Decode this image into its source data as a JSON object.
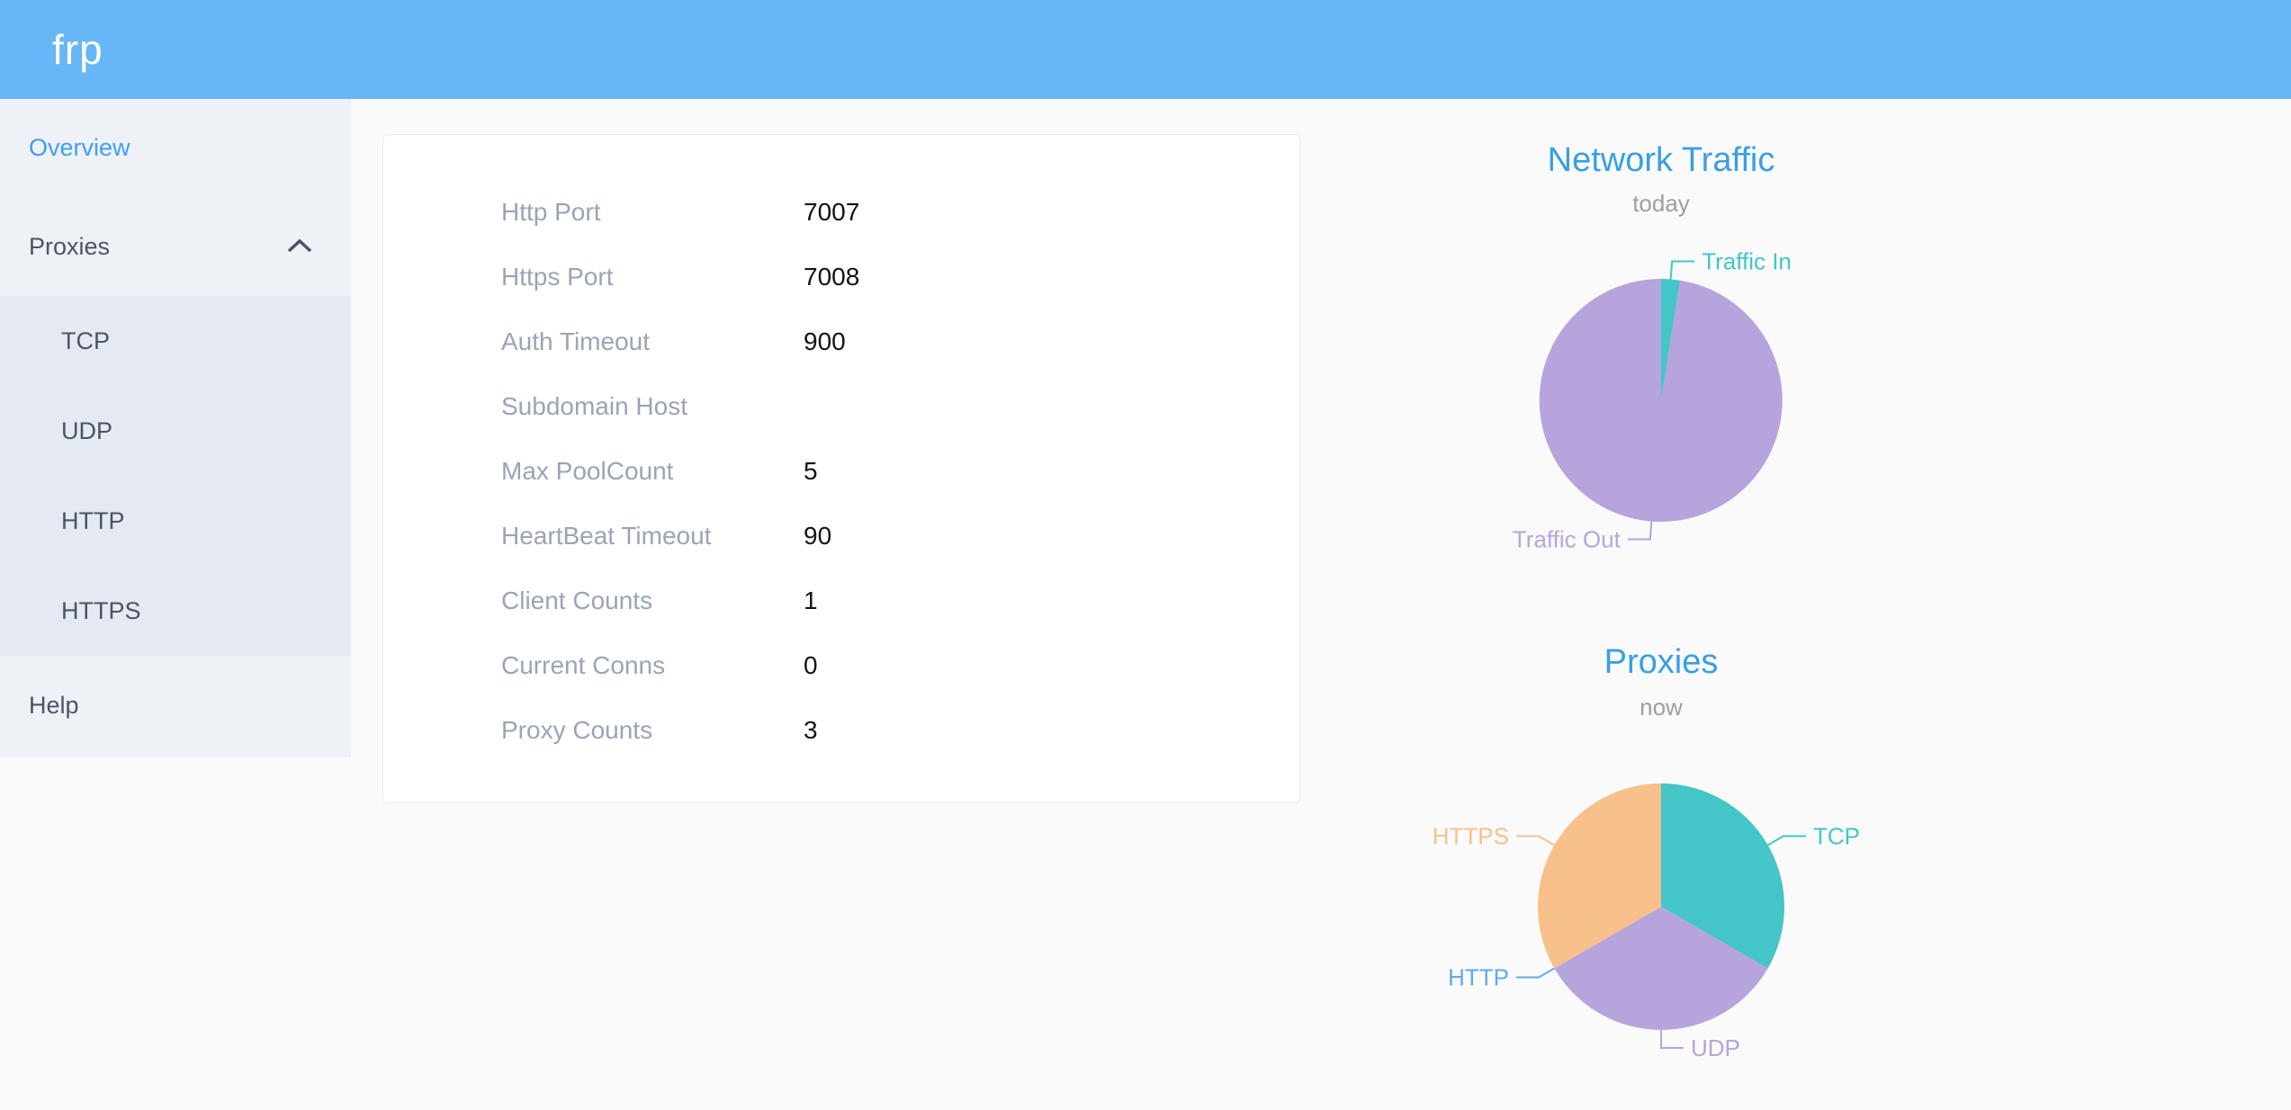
{
  "app": {
    "logo": "frp"
  },
  "sidebar": {
    "items": [
      {
        "label": "Overview",
        "active": true
      },
      {
        "label": "Proxies",
        "expanded": true,
        "children": [
          "TCP",
          "UDP",
          "HTTP",
          "HTTPS"
        ]
      },
      {
        "label": "Help"
      }
    ]
  },
  "server_info": {
    "rows": [
      {
        "label": "Http Port",
        "value": "7007"
      },
      {
        "label": "Https Port",
        "value": "7008"
      },
      {
        "label": "Auth Timeout",
        "value": "900"
      },
      {
        "label": "Subdomain Host",
        "value": ""
      },
      {
        "label": "Max PoolCount",
        "value": "5"
      },
      {
        "label": "HeartBeat Timeout",
        "value": "90"
      },
      {
        "label": "Client Counts",
        "value": "1"
      },
      {
        "label": "Current Conns",
        "value": "0"
      },
      {
        "label": "Proxy Counts",
        "value": "3"
      }
    ]
  },
  "chart_data": [
    {
      "type": "pie",
      "title": "Network Traffic",
      "subtitle": "today",
      "values_are": "percent, estimated from slice angles",
      "label_position": "outside",
      "slices": [
        {
          "label": "Traffic In",
          "value": 2.5,
          "color": "#44c5c8"
        },
        {
          "label": "Traffic Out",
          "value": 97.5,
          "color": "#b6a4dc"
        }
      ]
    },
    {
      "type": "pie",
      "title": "Proxies",
      "subtitle": "now",
      "values_are": "proxy count per type (total = 3)",
      "label_position": "outside",
      "slices": [
        {
          "label": "TCP",
          "value": 1,
          "color": "#44c5c8"
        },
        {
          "label": "UDP",
          "value": 1,
          "color": "#b6a4dc"
        },
        {
          "label": "HTTP",
          "value": 0,
          "color": "#60aae9"
        },
        {
          "label": "HTTPS",
          "value": 1,
          "color": "#f8c08b"
        }
      ]
    }
  ],
  "colors": {
    "header_bg": "#67b6f7",
    "sidebar_bg": "#eef1f6",
    "submenu_bg": "#e5e9f2",
    "active_link": "#3f9efa",
    "sidebar_text": "#4a5562",
    "card_border": "#e8ebf0",
    "info_label": "#9aa4b6",
    "info_value": "#111418",
    "chart_title": "#389fe6",
    "chart_subtitle": "#9c9ea1",
    "teal": "#44c5c8",
    "purple": "#b6a4dc",
    "orange": "#f8c08b",
    "http_blue": "#60aae9"
  }
}
